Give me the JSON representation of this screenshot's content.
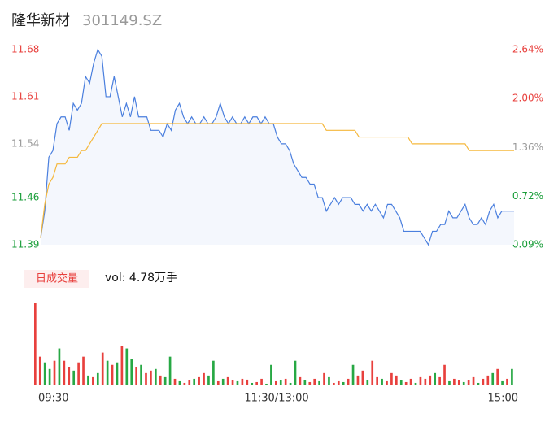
{
  "header": {
    "name": "隆华新材",
    "code": "301149.SZ"
  },
  "chart_data": [
    {
      "type": "line",
      "series": [
        {
          "color": "#4a7fde",
          "values": [
            11.4,
            11.44,
            11.52,
            11.53,
            11.57,
            11.58,
            11.58,
            11.56,
            11.6,
            11.59,
            11.6,
            11.64,
            11.63,
            11.66,
            11.68,
            11.67,
            11.61,
            11.61,
            11.64,
            11.61,
            11.58,
            11.6,
            11.58,
            11.61,
            11.58,
            11.58,
            11.58,
            11.56,
            11.56,
            11.56,
            11.55,
            11.57,
            11.56,
            11.59,
            11.6,
            11.58,
            11.57,
            11.58,
            11.57,
            11.57,
            11.58,
            11.57,
            11.57,
            11.58,
            11.6,
            11.58,
            11.57,
            11.58,
            11.57,
            11.57,
            11.58,
            11.57,
            11.58,
            11.58,
            11.57,
            11.58,
            11.57,
            11.57,
            11.55,
            11.54,
            11.54,
            11.53,
            11.51,
            11.5,
            11.49,
            11.49,
            11.48,
            11.48,
            11.46,
            11.46,
            11.44,
            11.45,
            11.46,
            11.45,
            11.46,
            11.46,
            11.46,
            11.45,
            11.45,
            11.44,
            11.45,
            11.44,
            11.45,
            11.44,
            11.43,
            11.45,
            11.45,
            11.44,
            11.43,
            11.41,
            11.41,
            11.41,
            11.41,
            11.41,
            11.4,
            11.39,
            11.41,
            11.41,
            11.42,
            11.42,
            11.44,
            11.43,
            11.43,
            11.44,
            11.45,
            11.43,
            11.42,
            11.42,
            11.43,
            11.42,
            11.44,
            11.45,
            11.43,
            11.44,
            11.44,
            11.44,
            11.44
          ]
        },
        {
          "color": "#f5b83d",
          "values": [
            11.4,
            11.45,
            11.48,
            11.49,
            11.51,
            11.51,
            11.51,
            11.52,
            11.52,
            11.52,
            11.53,
            11.53,
            11.54,
            11.55,
            11.56,
            11.57,
            11.57,
            11.57,
            11.57,
            11.57,
            11.57,
            11.57,
            11.57,
            11.57,
            11.57,
            11.57,
            11.57,
            11.57,
            11.57,
            11.57,
            11.57,
            11.57,
            11.57,
            11.57,
            11.57,
            11.57,
            11.57,
            11.57,
            11.57,
            11.57,
            11.57,
            11.57,
            11.57,
            11.57,
            11.57,
            11.57,
            11.57,
            11.57,
            11.57,
            11.57,
            11.57,
            11.57,
            11.57,
            11.57,
            11.57,
            11.57,
            11.57,
            11.57,
            11.57,
            11.57,
            11.57,
            11.57,
            11.57,
            11.57,
            11.57,
            11.57,
            11.57,
            11.57,
            11.57,
            11.57,
            11.56,
            11.56,
            11.56,
            11.56,
            11.56,
            11.56,
            11.56,
            11.56,
            11.55,
            11.55,
            11.55,
            11.55,
            11.55,
            11.55,
            11.55,
            11.55,
            11.55,
            11.55,
            11.55,
            11.55,
            11.55,
            11.54,
            11.54,
            11.54,
            11.54,
            11.54,
            11.54,
            11.54,
            11.54,
            11.54,
            11.54,
            11.54,
            11.54,
            11.54,
            11.54,
            11.53,
            11.53,
            11.53,
            11.53,
            11.53,
            11.53,
            11.53,
            11.53,
            11.53,
            11.53,
            11.53,
            11.53
          ]
        }
      ],
      "ylim": [
        11.39,
        11.68
      ],
      "yticks": [
        11.39,
        11.46,
        11.54,
        11.61,
        11.68
      ],
      "y2lim": [
        0.09,
        2.64
      ],
      "y2ticks": [
        {
          "value": 0.09,
          "label": "0.09%"
        },
        {
          "value": 0.72,
          "label": "0.72%"
        },
        {
          "value": 1.36,
          "label": "1.36%"
        },
        {
          "value": 2.0,
          "label": "2.00%"
        },
        {
          "value": 2.64,
          "label": "2.64%"
        }
      ],
      "fill": "#f4f7fd"
    },
    {
      "type": "bar",
      "button": "日成交量",
      "summary": "vol: 4.78万手",
      "x_labels": [
        "09:30",
        "11:30/13:00",
        "15:00"
      ],
      "ylim": [
        0,
        100
      ],
      "values": [
        100,
        35,
        28,
        20,
        30,
        45,
        30,
        22,
        18,
        28,
        35,
        12,
        10,
        15,
        40,
        30,
        25,
        28,
        48,
        45,
        32,
        22,
        25,
        15,
        18,
        20,
        12,
        10,
        35,
        8,
        5,
        3,
        6,
        8,
        10,
        15,
        12,
        30,
        5,
        8,
        10,
        6,
        5,
        8,
        7,
        3,
        4,
        8,
        2,
        25,
        5,
        6,
        8,
        3,
        30,
        10,
        6,
        4,
        8,
        5,
        15,
        10,
        3,
        5,
        4,
        8,
        25,
        12,
        18,
        6,
        30,
        10,
        8,
        5,
        15,
        12,
        6,
        4,
        8,
        3,
        10,
        8,
        12,
        15,
        10,
        25,
        5,
        8,
        6,
        4,
        6,
        10,
        3,
        8,
        12,
        15,
        20,
        5,
        8,
        20
      ],
      "colors": [
        "#e8403d",
        "#e8403d",
        "#27a844",
        "#27a844",
        "#e8403d",
        "#27a844",
        "#e8403d",
        "#e8403d",
        "#27a844",
        "#e8403d",
        "#e8403d",
        "#27a844",
        "#e8403d",
        "#27a844",
        "#e8403d",
        "#27a844",
        "#e8403d",
        "#27a844",
        "#e8403d",
        "#27a844",
        "#27a844",
        "#e8403d",
        "#27a844",
        "#e8403d",
        "#e8403d",
        "#27a844",
        "#e8403d",
        "#27a844",
        "#27a844",
        "#e8403d",
        "#27a844",
        "#e8403d",
        "#e8403d",
        "#27a844",
        "#e8403d",
        "#e8403d",
        "#27a844",
        "#27a844",
        "#e8403d",
        "#27a844",
        "#e8403d",
        "#e8403d",
        "#27a844",
        "#e8403d",
        "#e8403d",
        "#27a844",
        "#e8403d",
        "#e8403d",
        "#27a844",
        "#27a844",
        "#e8403d",
        "#27a844",
        "#e8403d",
        "#27a844",
        "#27a844",
        "#e8403d",
        "#27a844",
        "#e8403d",
        "#e8403d",
        "#27a844",
        "#e8403d",
        "#27a844",
        "#e8403d",
        "#e8403d",
        "#27a844",
        "#e8403d",
        "#27a844",
        "#e8403d",
        "#e8403d",
        "#27a844",
        "#e8403d",
        "#e8403d",
        "#27a844",
        "#e8403d",
        "#e8403d",
        "#e8403d",
        "#27a844",
        "#e8403d",
        "#e8403d",
        "#27a844",
        "#e8403d",
        "#e8403d",
        "#e8403d",
        "#27a844",
        "#e8403d",
        "#e8403d",
        "#27a844",
        "#e8403d",
        "#e8403d",
        "#27a844",
        "#e8403d",
        "#e8403d",
        "#27a844",
        "#e8403d",
        "#e8403d",
        "#27a844",
        "#e8403d",
        "#27a844",
        "#e8403d",
        "#27a844"
      ]
    }
  ]
}
